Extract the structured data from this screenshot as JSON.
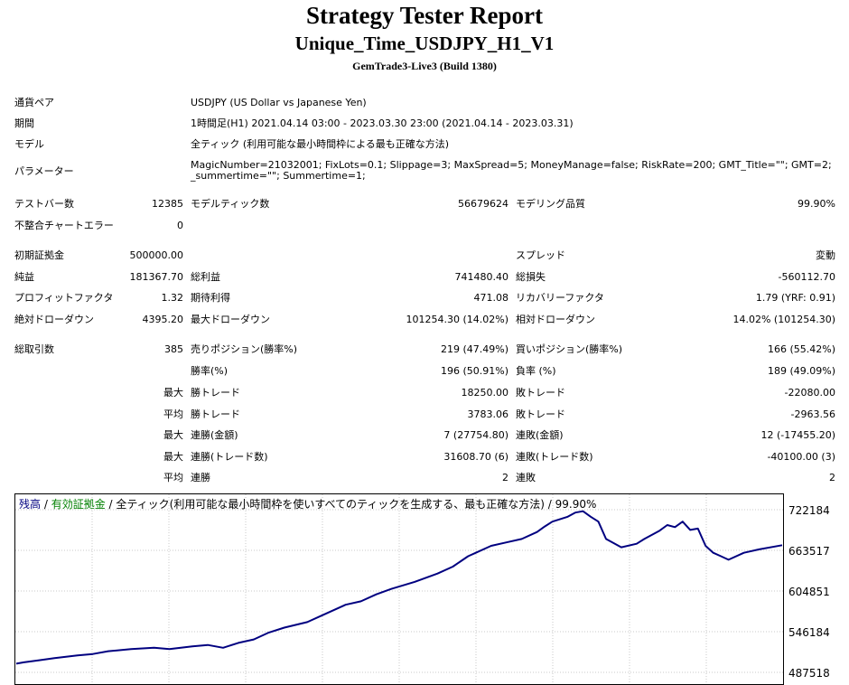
{
  "header": {
    "title": "Strategy Tester Report",
    "subtitle": "Unique_Time_USDJPY_H1_V1",
    "build": "GemTrade3-Live3 (Build 1380)"
  },
  "info": {
    "symbol_label": "通貨ペア",
    "symbol_value": "USDJPY (US Dollar vs Japanese Yen)",
    "period_label": "期間",
    "period_value": "1時間足(H1) 2021.04.14 03:00 - 2023.03.30 23:00 (2021.04.14 - 2023.03.31)",
    "model_label": "モデル",
    "model_value": "全ティック (利用可能な最小時間枠による最も正確な方法)",
    "params_label": "パラメーター",
    "params_value": "MagicNumber=21032001; FixLots=0.1; Slippage=3; MaxSpread=5; MoneyManage=false; RiskRate=200; GMT_Title=\"\"; GMT=2; _summertime=\"\"; Summertime=1;"
  },
  "stats": {
    "bars_label": "テストバー数",
    "bars_value": "12385",
    "ticks_label": "モデルティック数",
    "ticks_value": "56679624",
    "quality_label": "モデリング品質",
    "quality_value": "99.90%",
    "mismatch_label": "不整合チャートエラー",
    "mismatch_value": "0",
    "deposit_label": "初期証拠金",
    "deposit_value": "500000.00",
    "spread_label": "スプレッド",
    "spread_value": "変動",
    "net_label": "純益",
    "net_value": "181367.70",
    "gross_profit_label": "総利益",
    "gross_profit_value": "741480.40",
    "gross_loss_label": "総損失",
    "gross_loss_value": "-560112.70",
    "pf_label": "プロフィットファクタ",
    "pf_value": "1.32",
    "expected_label": "期待利得",
    "expected_value": "471.08",
    "recovery_label": "リカバリーファクタ",
    "recovery_value": "1.79 (YRF: 0.91)",
    "abs_dd_label": "絶対ドローダウン",
    "abs_dd_value": "4395.20",
    "max_dd_label": "最大ドローダウン",
    "max_dd_value": "101254.30 (14.02%)",
    "rel_dd_label": "相対ドローダウン",
    "rel_dd_value": "14.02% (101254.30)",
    "trades_label": "総取引数",
    "trades_value": "385",
    "short_label": "売りポジション(勝率%)",
    "short_value": "219 (47.49%)",
    "long_label": "買いポジション(勝率%)",
    "long_value": "166 (55.42%)",
    "winrate_label": "勝率(%)",
    "winrate_value": "196 (50.91%)",
    "lossrate_label": "負率 (%)",
    "lossrate_value": "189 (49.09%)",
    "max_prefix": "最大",
    "avg_prefix": "平均",
    "largest_win_label": "勝トレード",
    "largest_win_value": "18250.00",
    "largest_loss_label": "敗トレード",
    "largest_loss_value": "-22080.00",
    "avg_win_label": "勝トレード",
    "avg_win_value": "3783.06",
    "avg_loss_label": "敗トレード",
    "avg_loss_value": "-2963.56",
    "max_consec_win_label": "連勝(金額)",
    "max_consec_win_value": "7 (27754.80)",
    "max_consec_loss_label": "連敗(金額)",
    "max_consec_loss_value": "12 (-17455.20)",
    "max_consec_profit_label": "連勝(トレード数)",
    "max_consec_profit_value": "31608.70 (6)",
    "max_consec_lossamt_label": "連敗(トレード数)",
    "max_consec_lossamt_value": "-40100.00 (3)",
    "avg_consec_win_label": "連勝",
    "avg_consec_win_value": "2",
    "avg_consec_loss_label": "連敗",
    "avg_consec_loss_value": "2"
  },
  "chart_data": {
    "type": "line",
    "legend": {
      "balance": "残高",
      "sep1": " / ",
      "equity": "有効証拠金",
      "sep2": " / ",
      "model": "全ティック(利用可能な最小時間枠を使いすべてのティックを生成する、最も正確な方法)",
      "sep3": " / ",
      "quality": "99.90%"
    },
    "y_ticks": [
      "722184",
      "663517",
      "604851",
      "546184",
      "487518"
    ],
    "ylim": [
      487518,
      722184
    ],
    "grid": true,
    "series": [
      {
        "color": "#000080",
        "x": [
          0,
          1,
          3,
          5,
          8,
          10,
          12,
          15,
          18,
          20,
          23,
          25,
          27,
          29,
          31,
          33,
          35,
          38,
          40,
          43,
          45,
          47,
          49,
          52,
          55,
          57,
          59,
          60,
          62,
          64,
          66,
          68,
          69,
          70,
          72,
          73,
          74,
          75,
          76,
          77,
          79,
          81,
          82,
          84,
          85,
          86,
          87,
          88,
          89,
          90,
          91,
          92,
          93,
          95,
          97,
          100
        ],
        "y": [
          500000,
          502000,
          505000,
          508000,
          512000,
          514000,
          518000,
          521000,
          523000,
          521000,
          525000,
          527000,
          523000,
          530000,
          535000,
          545000,
          552000,
          560000,
          570000,
          585000,
          590000,
          600000,
          608000,
          618000,
          630000,
          640000,
          655000,
          660000,
          670000,
          675000,
          680000,
          690000,
          698000,
          705000,
          712000,
          718000,
          720000,
          712000,
          705000,
          680000,
          668000,
          673000,
          680000,
          692000,
          700000,
          697000,
          705000,
          693000,
          695000,
          670000,
          660000,
          655000,
          650000,
          660000,
          665000,
          671000
        ]
      }
    ]
  }
}
